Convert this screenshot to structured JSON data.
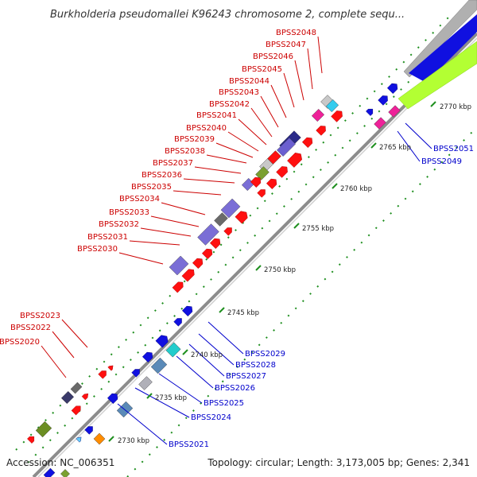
{
  "title": "Burkholderia pseudomallei K96243 chromosome 2, complete sequ...",
  "footer": {
    "accession": "Accession: NC_006351",
    "summary": "Topology: circular; Length: 3,173,005 bp; Genes: 2,341"
  },
  "colors": {
    "label_left": "#cc0000",
    "label_right": "#0000cc",
    "backbone": "#8c8c8c",
    "tick_dot": "#1f8f1f"
  },
  "ticks": [
    "2730 kbp",
    "2735 kbp",
    "2740 kbp",
    "2745 kbp",
    "2750 kbp",
    "2755 kbp",
    "2760 kbp",
    "2765 kbp",
    "2770 kbp"
  ],
  "genes_left": [
    "BPSS2048",
    "BPSS2047",
    "BPSS2046",
    "BPSS2045",
    "BPSS2044",
    "BPSS2043",
    "BPSS2042",
    "BPSS2041",
    "BPSS2040",
    "BPSS2039",
    "BPSS2038",
    "BPSS2037",
    "BPSS2036",
    "BPSS2035",
    "BPSS2034",
    "BPSS2033",
    "BPSS2032",
    "BPSS2031",
    "BPSS2030",
    "BPSS2023",
    "BPSS2022",
    "BPSS2020"
  ],
  "genes_right": [
    "BPSS2051",
    "BPSS2049",
    "BPSS2029",
    "BPSS2028",
    "BPSS2027",
    "BPSS2026",
    "BPSS2025",
    "BPSS2024",
    "BPSS2021"
  ]
}
